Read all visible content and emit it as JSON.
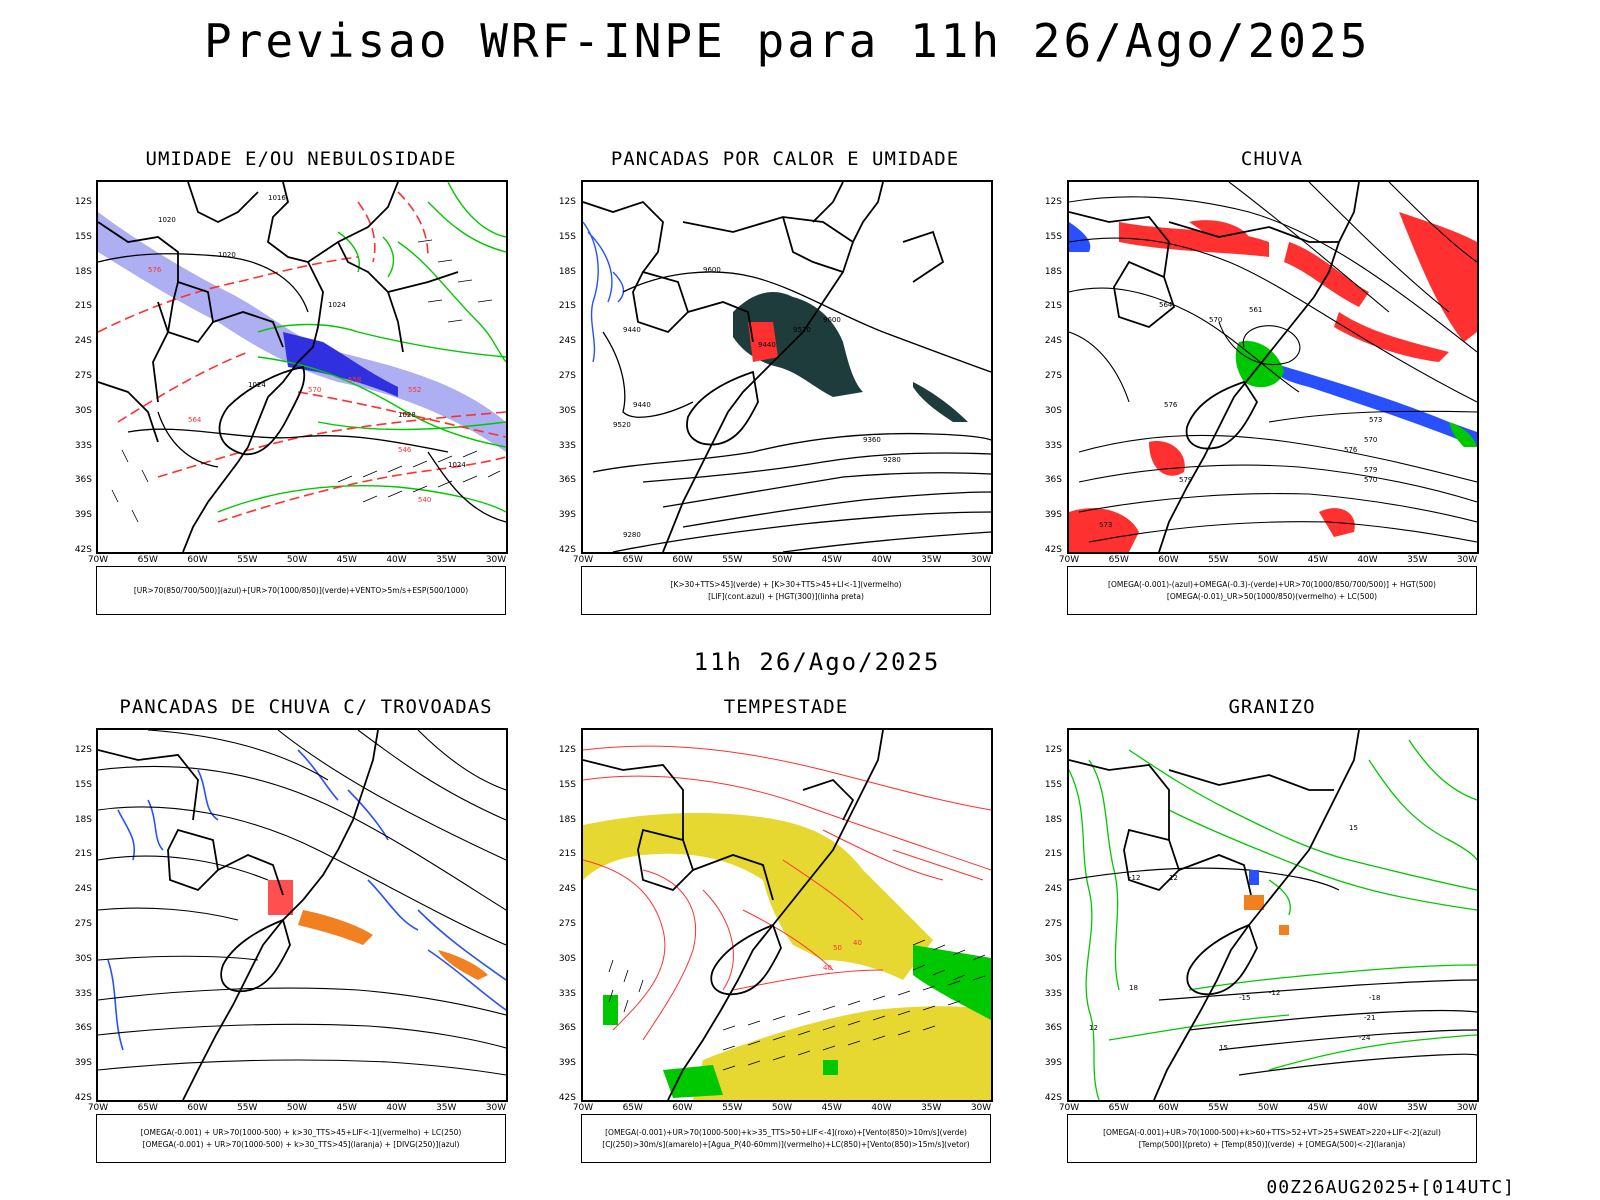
{
  "title": "Previsao WRF-INPE  para 11h 26/Ago/2025",
  "mid_date": "11h 26/Ago/2025",
  "footer": "00Z26AUG2025+[014UTC]",
  "lat_ticks": [
    "12S",
    "15S",
    "18S",
    "21S",
    "24S",
    "27S",
    "30S",
    "33S",
    "36S",
    "39S",
    "42S"
  ],
  "lon_ticks": [
    "70W",
    "65W",
    "60W",
    "55W",
    "50W",
    "45W",
    "40W",
    "35W",
    "30W"
  ],
  "panels": [
    {
      "id": "umidade",
      "title": "UMIDADE E/OU NEBULOSIDADE",
      "legend": [
        "[UR>70(850/700/500)](azul)+[UR>70(1000/850)](verde)+VENTO>5m/s+ESP(500/1000)"
      ],
      "contour_labels": [
        "1016",
        "1020",
        "1024",
        "1024",
        "1028",
        "1024",
        "1020",
        "576",
        "570",
        "564",
        "558",
        "552",
        "546",
        "540"
      ]
    },
    {
      "id": "pancadas-calor",
      "title": "PANCADAS POR CALOR E UMIDADE",
      "legend": [
        "[K>30+TTS>45](verde) + [K>30+TTS>45+LI<-1](vermelho)",
        "[LIF](cont.azul) + [HGT(300)](linha preta)"
      ],
      "contour_labels": [
        "9600",
        "9520",
        "9440",
        "9440",
        "9360",
        "9280",
        "9600",
        "9520",
        "9440",
        "9280"
      ]
    },
    {
      "id": "chuva",
      "title": "CHUVA",
      "legend": [
        "[OMEGA(-0.001)-(azul)+OMEGA(-0.3)-(verde)+UR>70(1000/850/700/500)] + HGT(500)",
        "[OMEGA(-0.01)_UR>50(1000/850)(vermelho) + LC(500)"
      ],
      "contour_labels": [
        "576",
        "579",
        "573",
        "570",
        "576",
        "579",
        "570",
        "573",
        "570",
        "564",
        "561"
      ]
    },
    {
      "id": "trovoadas",
      "title": "PANCADAS DE CHUVA C/ TROVOADAS",
      "legend": [
        "[OMEGA(-0.001) + UR>70(1000-500) + k>30_TTS>45+LIF<-1](vermelho) + LC(250)",
        "[OMEGA(-0.001) + UR>70(1000-500) + k>30_TTS>45](laranja) + [DIVG(250)](azul)"
      ],
      "contour_labels": []
    },
    {
      "id": "tempestade",
      "title": "TEMPESTADE",
      "legend": [
        "[OMEGA(-0.001)+UR>70(1000-500)+k>35_TTS>50+LIF<-4](roxo)+[Vento(850)>10m/s](verde)",
        "[CJ(250)>30m/s](amarelo)+[Agua_P(40-60mm)](vermelho)+LC(850)+[Vento(850)>15m/s](vetor)"
      ],
      "contour_labels": [
        "40",
        "50",
        "40"
      ]
    },
    {
      "id": "granizo",
      "title": "GRANIZO",
      "legend": [
        "[OMEGA(-0.001)+UR>70(1000-500)+k>60+TTS>52+VT>25+SWEAT>220+LIF<-2](azul)",
        "[Temp(500)](preto) + [Temp(850)](verde) + [OMEGA(500)<-2](laranja)"
      ],
      "contour_labels": [
        "-12",
        "-12",
        "-15",
        "-18",
        "-21",
        "-24",
        "12",
        "15",
        "18",
        "12",
        "15"
      ]
    }
  ],
  "colors": {
    "contour_black": "#000000",
    "green": "#00c800",
    "blue": "#2850ff",
    "light_blue": "#a0a0f0",
    "red": "#ff3030",
    "orange": "#f08020",
    "yellow": "#e6d830",
    "dark_teal": "#1e3c3c"
  }
}
